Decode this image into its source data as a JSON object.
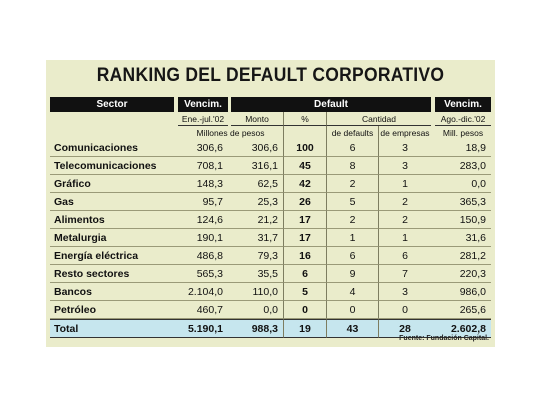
{
  "title": "RANKING DEL DEFAULT CORPORATIVO",
  "headers": {
    "sector": "Sector",
    "vencim1": "Vencim.",
    "default": "Default",
    "vencim2": "Vencim.",
    "period1": "Ene.-jul.'02",
    "monto": "Monto",
    "pct": "%",
    "cantidad": "Cantidad",
    "period2": "Ago.-dic.'02",
    "millones": "Millones de pesos",
    "defaults": "de defaults",
    "empresas": "de empresas",
    "mill": "Mill. pesos"
  },
  "rows": [
    {
      "sector": "Comunicaciones",
      "vencim": "306,6",
      "monto": "306,6",
      "pct": "100",
      "defaults": "6",
      "empresas": "3",
      "vencim2": "18,9"
    },
    {
      "sector": "Telecomunicaciones",
      "vencim": "708,1",
      "monto": "316,1",
      "pct": "45",
      "defaults": "8",
      "empresas": "3",
      "vencim2": "283,0"
    },
    {
      "sector": "Gráfico",
      "vencim": "148,3",
      "monto": "62,5",
      "pct": "42",
      "defaults": "2",
      "empresas": "1",
      "vencim2": "0,0"
    },
    {
      "sector": "Gas",
      "vencim": "95,7",
      "monto": "25,3",
      "pct": "26",
      "defaults": "5",
      "empresas": "2",
      "vencim2": "365,3"
    },
    {
      "sector": "Alimentos",
      "vencim": "124,6",
      "monto": "21,2",
      "pct": "17",
      "defaults": "2",
      "empresas": "2",
      "vencim2": "150,9"
    },
    {
      "sector": "Metalurgia",
      "vencim": "190,1",
      "monto": "31,7",
      "pct": "17",
      "defaults": "1",
      "empresas": "1",
      "vencim2": "31,6"
    },
    {
      "sector": "Energía eléctrica",
      "vencim": "486,8",
      "monto": "79,3",
      "pct": "16",
      "defaults": "6",
      "empresas": "6",
      "vencim2": "281,2"
    },
    {
      "sector": "Resto sectores",
      "vencim": "565,3",
      "monto": "35,5",
      "pct": "6",
      "defaults": "9",
      "empresas": "7",
      "vencim2": "220,3"
    },
    {
      "sector": "Bancos",
      "vencim": "2.104,0",
      "monto": "110,0",
      "pct": "5",
      "defaults": "4",
      "empresas": "3",
      "vencim2": "986,0"
    },
    {
      "sector": "Petróleo",
      "vencim": "460,7",
      "monto": "0,0",
      "pct": "0",
      "defaults": "0",
      "empresas": "0",
      "vencim2": "265,6"
    }
  ],
  "total": {
    "sector": "Total",
    "vencim": "5.190,1",
    "monto": "988,3",
    "pct": "19",
    "defaults": "43",
    "empresas": "28",
    "vencim2": "2.602,8"
  },
  "source": "Fuente: Fundación Capital."
}
